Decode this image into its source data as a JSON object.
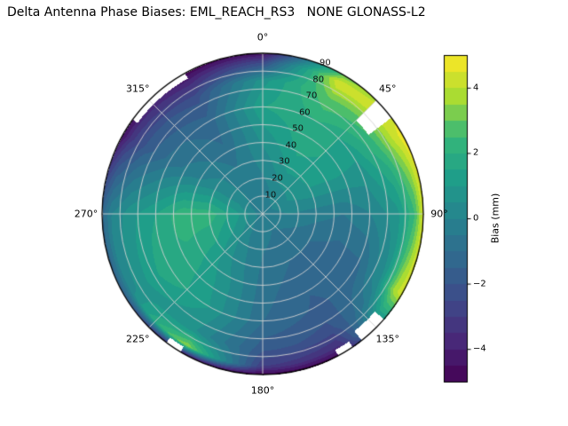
{
  "title": "Delta Antenna Phase Biases: EML_REACH_RS3   NONE GLONASS-L2",
  "chart_data": {
    "type": "heatmap",
    "projection": "polar",
    "title": "Delta Antenna Phase Biases: EML_REACH_RS3   NONE GLONASS-L2",
    "azimuth_tick_labels": [
      "0°",
      "45°",
      "90°",
      "135°",
      "180°",
      "225°",
      "270°",
      "315°"
    ],
    "azimuth_tick_angles_deg": [
      0,
      45,
      90,
      135,
      180,
      225,
      270,
      315
    ],
    "radial_tick_labels": [
      "10",
      "20",
      "30",
      "40",
      "50",
      "60",
      "70",
      "80",
      "90"
    ],
    "radial_tick_values": [
      10,
      20,
      30,
      40,
      50,
      60,
      70,
      80,
      90
    ],
    "radial_label_angle_deg": 22.5,
    "radial_range": [
      0,
      90
    ],
    "grid": true,
    "azimuths_deg": [
      0,
      30,
      60,
      90,
      120,
      150,
      180,
      210,
      240,
      270,
      300,
      330
    ],
    "radii": [
      0,
      15,
      30,
      45,
      60,
      75,
      85,
      90
    ],
    "bias_mm": [
      [
        -0.3,
        -0.3,
        -0.3,
        -0.3,
        -0.3,
        -0.3,
        -0.3,
        -0.3,
        -0.3,
        -0.3,
        -0.3,
        -0.3
      ],
      [
        -0.2,
        0.3,
        0.5,
        0.0,
        -0.5,
        -0.6,
        -0.4,
        0.0,
        0.8,
        1.2,
        0.3,
        -0.2
      ],
      [
        0.2,
        1.2,
        1.0,
        -0.3,
        -1.0,
        -1.0,
        -0.6,
        0.3,
        1.5,
        2.3,
        0.3,
        -0.5
      ],
      [
        0.8,
        1.8,
        1.2,
        -0.5,
        -1.3,
        -1.4,
        -0.8,
        0.8,
        1.8,
        2.4,
        -0.2,
        -1.0
      ],
      [
        1.5,
        2.0,
        1.0,
        0.0,
        -1.2,
        -1.6,
        -1.0,
        1.0,
        2.0,
        1.5,
        -0.8,
        -1.3
      ],
      [
        0.8,
        3.0,
        2.5,
        0.8,
        0.5,
        -2.2,
        -1.8,
        0.5,
        1.0,
        0.8,
        -1.8,
        -2.2
      ],
      [
        -2.5,
        4.5,
        4.2,
        2.5,
        3.8,
        -3.5,
        -3.0,
        3.5,
        0.3,
        0.0,
        -3.2,
        -3.8
      ],
      [
        -4.5,
        3.0,
        4.8,
        4.6,
        4.4,
        -4.8,
        -5.0,
        -4.5,
        -1.5,
        -1.2,
        -4.5,
        -4.8
      ]
    ],
    "no_data_sectors": [
      {
        "az0": 45,
        "az1": 53,
        "r0": 74,
        "r1": 90
      },
      {
        "az0": 131,
        "az1": 142,
        "r0": 83,
        "r1": 90
      },
      {
        "az0": 146,
        "az1": 152,
        "r0": 86,
        "r1": 90
      },
      {
        "az0": 211,
        "az1": 217,
        "r0": 86.5,
        "r1": 90
      },
      {
        "az0": 306,
        "az1": 331,
        "r0": 87,
        "r1": 90
      }
    ],
    "colorbar": {
      "label": "Bias (mm)",
      "tick_values": [
        -4,
        -2,
        0,
        2,
        4
      ],
      "tick_labels": [
        "−4",
        "−2",
        "0",
        "2",
        "4"
      ],
      "vmin": -5,
      "vmax": 5,
      "level_step": 0.5
    },
    "colormap": {
      "name": "viridis",
      "anchors": [
        {
          "t": 0.0,
          "rgb": [
            68,
            1,
            84
          ]
        },
        {
          "t": 0.125,
          "rgb": [
            72,
            40,
            120
          ]
        },
        {
          "t": 0.25,
          "rgb": [
            62,
            74,
            137
          ]
        },
        {
          "t": 0.375,
          "rgb": [
            49,
            104,
            142
          ]
        },
        {
          "t": 0.5,
          "rgb": [
            38,
            130,
            142
          ]
        },
        {
          "t": 0.625,
          "rgb": [
            31,
            158,
            137
          ]
        },
        {
          "t": 0.75,
          "rgb": [
            53,
            183,
            121
          ]
        },
        {
          "t": 0.875,
          "rgb": [
            170,
            220,
            50
          ]
        },
        {
          "t": 1.0,
          "rgb": [
            253,
            231,
            37
          ]
        }
      ]
    },
    "colors": {
      "background": "#ffffff",
      "grid_line": "#d2d2d2",
      "outline": "#000000"
    }
  }
}
